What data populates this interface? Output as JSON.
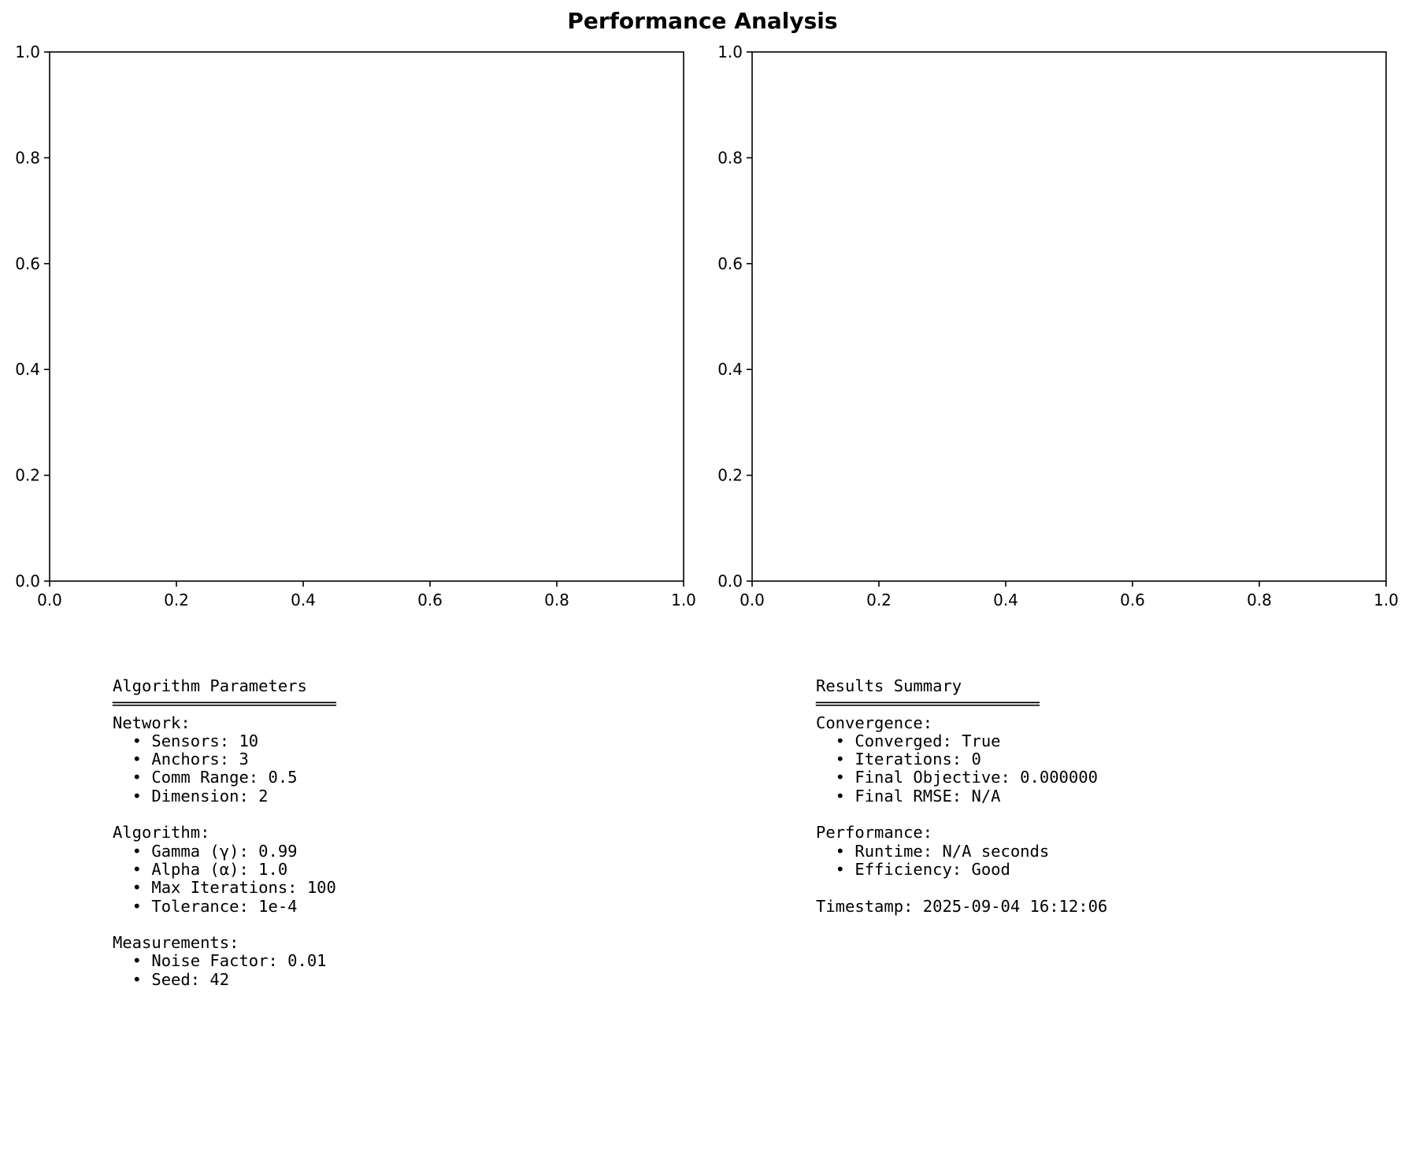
{
  "figure": {
    "title": "Performance Analysis"
  },
  "chart_data": [
    {
      "type": "scatter",
      "title": "",
      "xlabel": "",
      "ylabel": "",
      "xlim": [
        0,
        1
      ],
      "ylim": [
        0,
        1
      ],
      "xticks": [
        "0.0",
        "0.2",
        "0.4",
        "0.6",
        "0.8",
        "1.0"
      ],
      "yticks": [
        "0.0",
        "0.2",
        "0.4",
        "0.6",
        "0.8",
        "1.0"
      ],
      "grid": false,
      "series": []
    },
    {
      "type": "scatter",
      "title": "",
      "xlabel": "",
      "ylabel": "",
      "xlim": [
        0,
        1
      ],
      "ylim": [
        0,
        1
      ],
      "xticks": [
        "0.0",
        "0.2",
        "0.4",
        "0.6",
        "0.8",
        "1.0"
      ],
      "yticks": [
        "0.0",
        "0.2",
        "0.4",
        "0.6",
        "0.8",
        "1.0"
      ],
      "grid": false,
      "series": []
    }
  ],
  "parameters": {
    "lines": [
      "Algorithm Parameters",
      "═══════════════════════",
      "Network:",
      "  • Sensors: 10",
      "  • Anchors: 3",
      "  • Comm Range: 0.5",
      "  • Dimension: 2",
      "",
      "Algorithm:",
      "  • Gamma (γ): 0.99",
      "  • Alpha (α): 1.0",
      "  • Max Iterations: 100",
      "  • Tolerance: 1e-4",
      "",
      "Measurements:",
      "  • Noise Factor: 0.01",
      "  • Seed: 42"
    ]
  },
  "results": {
    "lines": [
      "Results Summary",
      "═══════════════════════",
      "Convergence:",
      "  • Converged: True",
      "  • Iterations: 0",
      "  • Final Objective: 0.000000",
      "  • Final RMSE: N/A",
      "",
      "Performance:",
      "  • Runtime: N/A seconds",
      "  • Efficiency: Good",
      "",
      "Timestamp: 2025-09-04 16:12:06"
    ]
  }
}
